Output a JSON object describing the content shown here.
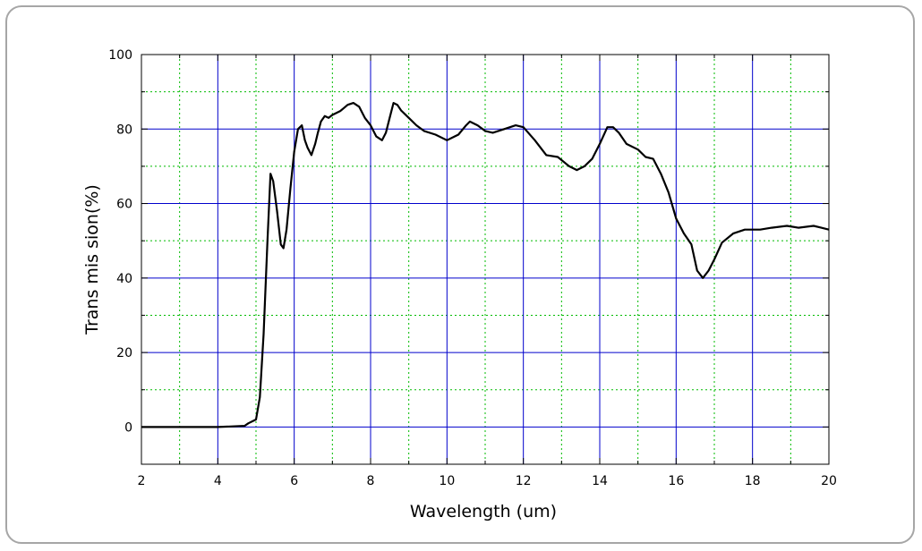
{
  "chart_data": {
    "type": "line",
    "title": "",
    "xlabel": "Wavelength (um)",
    "ylabel": "Trans mis sion(%)",
    "xlim": [
      2,
      20
    ],
    "ylim": [
      -10,
      100
    ],
    "x_ticks": [
      2,
      4,
      6,
      8,
      10,
      12,
      14,
      16,
      18,
      20
    ],
    "y_ticks": [
      0,
      20,
      40,
      60,
      80,
      100
    ],
    "grid": true,
    "major_grid_color": "#0000cc",
    "minor_grid_color": "#00bb00",
    "line_color": "#000000",
    "series": [
      {
        "x": [
          2.0,
          3.0,
          4.0,
          4.7,
          4.8,
          5.0,
          5.1,
          5.2,
          5.3,
          5.38,
          5.45,
          5.55,
          5.65,
          5.72,
          5.8,
          5.9,
          6.0,
          6.1,
          6.2,
          6.28,
          6.35,
          6.45,
          6.55,
          6.62,
          6.7,
          6.8,
          6.9,
          7.0,
          7.2,
          7.4,
          7.55,
          7.7,
          7.85,
          8.0,
          8.15,
          8.3,
          8.4,
          8.5,
          8.6,
          8.7,
          8.8,
          9.0,
          9.2,
          9.4,
          9.7,
          10.0,
          10.3,
          10.5,
          10.6,
          10.8,
          11.0,
          11.2,
          11.5,
          11.8,
          12.0,
          12.3,
          12.6,
          12.9,
          13.2,
          13.4,
          13.6,
          13.8,
          14.0,
          14.2,
          14.35,
          14.5,
          14.7,
          15.0,
          15.2,
          15.4,
          15.6,
          15.8,
          16.0,
          16.2,
          16.4,
          16.55,
          16.7,
          16.85,
          17.0,
          17.2,
          17.5,
          17.8,
          18.2,
          18.5,
          18.9,
          19.2,
          19.6,
          19.8,
          20.0
        ],
        "values": [
          0,
          0,
          0,
          0.3,
          1,
          2,
          8,
          25,
          50,
          68,
          66,
          58,
          49,
          48,
          53,
          64,
          74,
          80,
          81,
          77,
          75,
          73,
          76,
          79,
          82,
          83.5,
          83,
          83.8,
          84.8,
          86.5,
          87,
          86,
          83,
          81,
          78,
          77,
          79,
          83,
          87,
          86.5,
          85,
          83,
          81,
          79.5,
          78.5,
          77,
          78.5,
          81,
          82,
          81,
          79.5,
          79,
          80,
          81,
          80.5,
          77,
          73,
          72.5,
          70,
          69,
          70,
          72,
          76,
          80.5,
          80.5,
          79,
          76,
          74.5,
          72.5,
          72,
          68,
          63,
          56,
          52,
          49,
          42,
          40,
          42,
          45,
          49.5,
          52,
          53,
          53,
          53.5,
          54,
          53.5,
          54,
          53.5,
          53
        ]
      }
    ]
  }
}
